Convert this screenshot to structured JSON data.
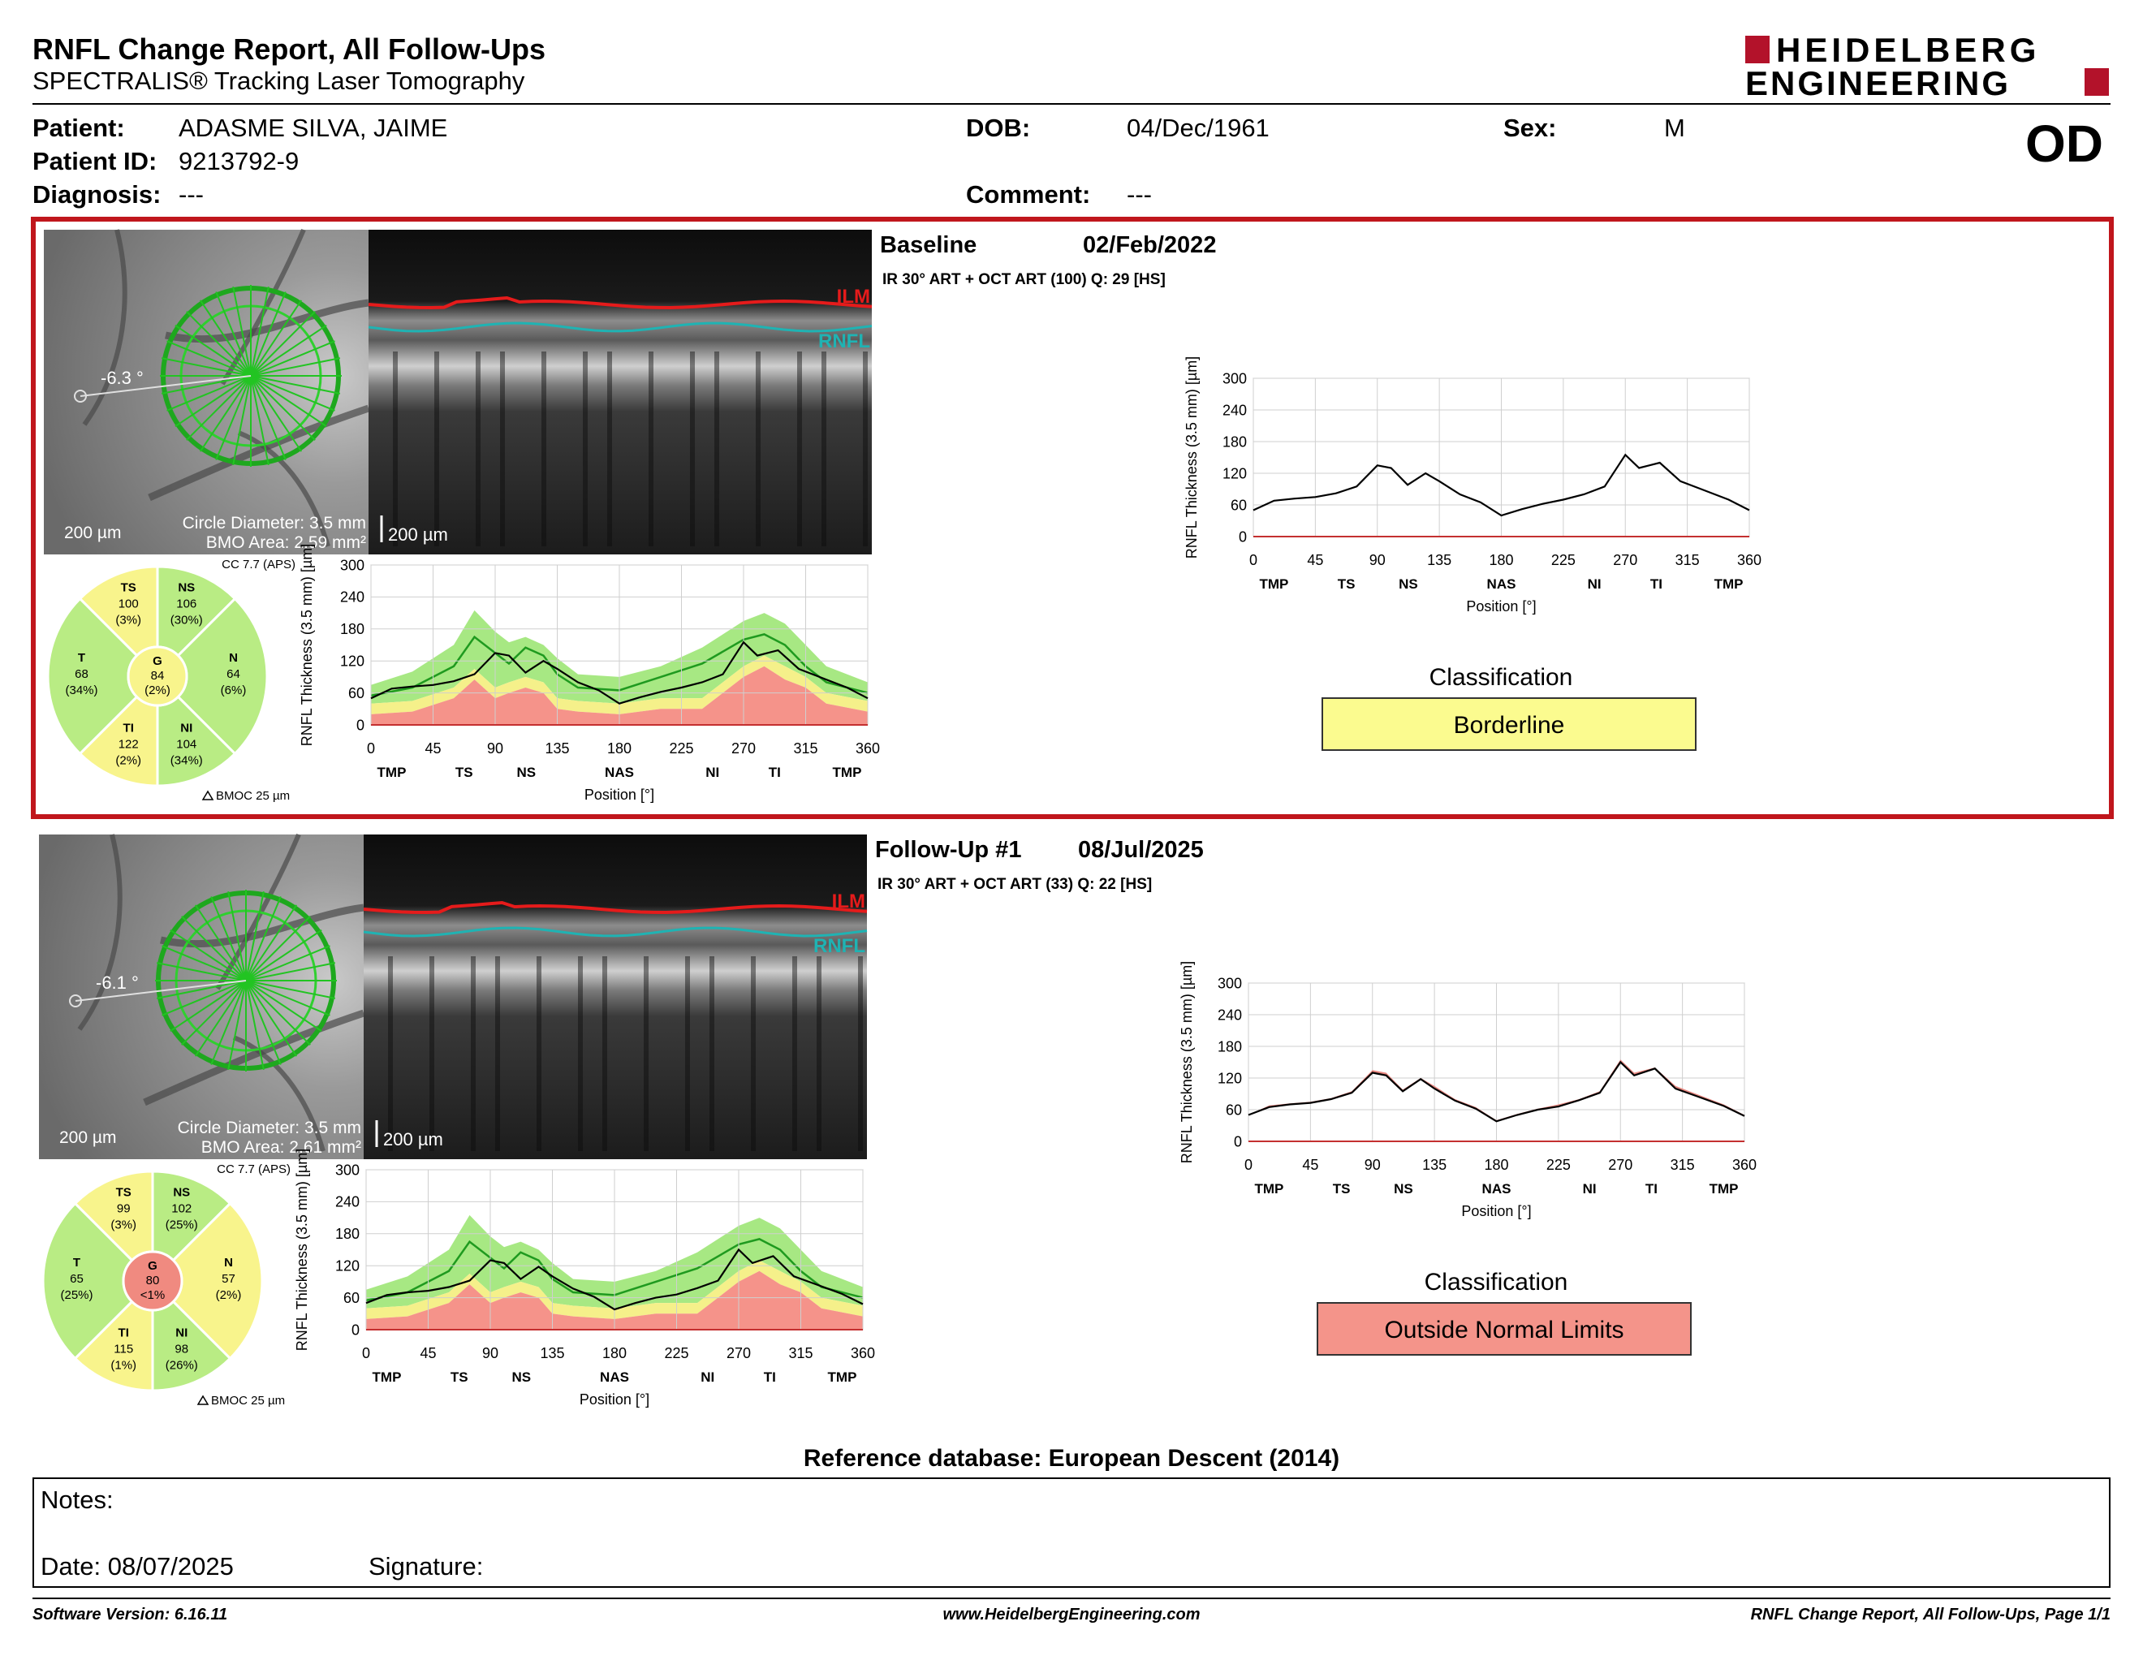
{
  "report": {
    "title": "RNFL Change Report, All Follow-Ups",
    "subtitle": "SPECTRALIS® Tracking Laser Tomography",
    "logo_line1": "HEIDELBERG",
    "logo_line2": "ENGINEERING",
    "eye": "OD"
  },
  "patient": {
    "patient_label": "Patient:",
    "patient_value": "ADASME SILVA, JAIME",
    "id_label": "Patient ID:",
    "id_value": "9213792-9",
    "diagnosis_label": "Diagnosis:",
    "diagnosis_value": "---",
    "dob_label": "DOB:",
    "dob_value": "04/Dec/1961",
    "comment_label": "Comment:",
    "comment_value": "---",
    "sex_label": "Sex:",
    "sex_value": "M"
  },
  "exams": [
    {
      "header": "Baseline",
      "date": "02/Feb/2022",
      "acq": "IR 30° ART + OCT ART (100) Q: 29 [HS]",
      "fundus": {
        "angle": "-6.3 °",
        "scale": "200 µm",
        "circle": "Circle Diameter: 3.5 mm",
        "bmo": "BMO Area: 2.59 mm²",
        "cc": "CC 7.7 (APS)",
        "bmoc": "BMOC 25 µm"
      },
      "oct": {
        "ilm": "ILM",
        "rnfl": "RNFL",
        "scale": "200 µm"
      },
      "sectors": {
        "TS": {
          "name": "TS",
          "value": "100",
          "pct": "(3%)",
          "color": "#f8f48c"
        },
        "NS": {
          "name": "NS",
          "value": "106",
          "pct": "(30%)",
          "color": "#b9ec84"
        },
        "T": {
          "name": "T",
          "value": "68",
          "pct": "(34%)",
          "color": "#b9ec84"
        },
        "G": {
          "name": "G",
          "value": "84",
          "pct": "(2%)",
          "color": "#f8f48c"
        },
        "N": {
          "name": "N",
          "value": "64",
          "pct": "(6%)",
          "color": "#b9ec84"
        },
        "TI": {
          "name": "TI",
          "value": "122",
          "pct": "(2%)",
          "color": "#f8f48c"
        },
        "NI": {
          "name": "NI",
          "value": "104",
          "pct": "(34%)",
          "color": "#b9ec84"
        }
      },
      "classification_label": "Classification",
      "classification": "Borderline",
      "classification_color": "#fbfb8f"
    },
    {
      "header": "Follow-Up #1",
      "date": "08/Jul/2025",
      "acq": "IR 30° ART + OCT ART (33) Q: 22 [HS]",
      "fundus": {
        "angle": "-6.1 °",
        "scale": "200 µm",
        "circle": "Circle Diameter: 3.5 mm",
        "bmo": "BMO Area: 2.61 mm²",
        "cc": "CC 7.7 (APS)",
        "bmoc": "BMOC 25 µm"
      },
      "oct": {
        "ilm": "ILM",
        "rnfl": "RNFL",
        "scale": "200 µm"
      },
      "sectors": {
        "TS": {
          "name": "TS",
          "value": "99",
          "pct": "(3%)",
          "color": "#f8f48c"
        },
        "NS": {
          "name": "NS",
          "value": "102",
          "pct": "(25%)",
          "color": "#b9ec84"
        },
        "T": {
          "name": "T",
          "value": "65",
          "pct": "(25%)",
          "color": "#b9ec84"
        },
        "G": {
          "name": "G",
          "value": "80",
          "pct": "<1%",
          "color": "#f08a80"
        },
        "N": {
          "name": "N",
          "value": "57",
          "pct": "(2%)",
          "color": "#f8f48c"
        },
        "TI": {
          "name": "TI",
          "value": "115",
          "pct": "(1%)",
          "color": "#f8f48c"
        },
        "NI": {
          "name": "NI",
          "value": "98",
          "pct": "(26%)",
          "color": "#b9ec84"
        }
      },
      "classification_label": "Classification",
      "classification": "Outside Normal Limits",
      "classification_color": "#f4948a"
    }
  ],
  "chart_common": {
    "ylabel": "RNFL Thickness (3.5 mm) [µm]",
    "xlabel": "Position [°]",
    "xticks": [
      "0",
      "45",
      "90",
      "135",
      "180",
      "225",
      "270",
      "315",
      "360"
    ],
    "yticks": [
      "0",
      "60",
      "120",
      "180",
      "240",
      "300"
    ],
    "sector_labels_small": [
      "TMP",
      "TS",
      "NS",
      "NAS",
      "NI",
      "TI",
      "TMP"
    ],
    "sector_labels_large": [
      "TMP",
      "TS",
      "NS",
      "NAS",
      "NI",
      "TI",
      "TMP"
    ]
  },
  "chart_data": [
    {
      "type": "line",
      "title": "",
      "xlabel": "Position [°]",
      "ylabel": "RNFL Thickness (3.5 mm) [µm]",
      "xlim": [
        0,
        360
      ],
      "ylim": [
        0,
        300
      ],
      "x": [
        0,
        15,
        30,
        45,
        60,
        75,
        90,
        100,
        112,
        125,
        135,
        150,
        165,
        180,
        195,
        210,
        225,
        240,
        255,
        270,
        280,
        295,
        310,
        325,
        345,
        360
      ],
      "series": [
        {
          "values": [
            50,
            68,
            72,
            75,
            82,
            95,
            135,
            130,
            98,
            120,
            105,
            80,
            65,
            40,
            52,
            62,
            70,
            80,
            95,
            155,
            130,
            140,
            105,
            90,
            70,
            50
          ]
        }
      ],
      "bands": {
        "x": [
          0,
          30,
          60,
          75,
          90,
          100,
          112,
          125,
          135,
          150,
          180,
          210,
          240,
          270,
          285,
          300,
          315,
          330,
          360
        ],
        "p1": [
          20,
          25,
          50,
          85,
          50,
          60,
          70,
          60,
          30,
          25,
          20,
          30,
          30,
          90,
          110,
          85,
          70,
          40,
          25
        ],
        "p5": [
          40,
          45,
          70,
          105,
          70,
          80,
          90,
          80,
          50,
          45,
          40,
          50,
          50,
          110,
          130,
          110,
          90,
          60,
          45
        ],
        "mean": [
          55,
          70,
          110,
          165,
          135,
          115,
          145,
          130,
          95,
          70,
          65,
          90,
          115,
          160,
          170,
          150,
          110,
          80,
          60
        ],
        "p95": [
          75,
          100,
          150,
          215,
          175,
          155,
          165,
          150,
          125,
          95,
          90,
          110,
          145,
          195,
          210,
          190,
          150,
          110,
          80
        ]
      }
    },
    {
      "type": "line",
      "title": "",
      "xlabel": "Position [°]",
      "ylabel": "RNFL Thickness (3.5 mm) [µm]",
      "xlim": [
        0,
        360
      ],
      "ylim": [
        0,
        300
      ],
      "x": [
        0,
        15,
        30,
        45,
        60,
        75,
        90,
        100,
        112,
        125,
        135,
        150,
        165,
        180,
        195,
        210,
        225,
        240,
        255,
        270,
        280,
        295,
        310,
        325,
        345,
        360
      ],
      "series": [
        {
          "values": [
            50,
            65,
            70,
            73,
            80,
            92,
            130,
            125,
            95,
            118,
            100,
            77,
            62,
            38,
            50,
            60,
            66,
            78,
            92,
            150,
            125,
            138,
            100,
            86,
            67,
            48
          ]
        }
      ],
      "bands": {
        "x": [
          0,
          30,
          60,
          75,
          90,
          100,
          112,
          125,
          135,
          150,
          180,
          210,
          240,
          270,
          285,
          300,
          315,
          330,
          360
        ],
        "p1": [
          20,
          25,
          50,
          85,
          50,
          60,
          70,
          60,
          30,
          25,
          20,
          30,
          30,
          90,
          110,
          85,
          70,
          40,
          25
        ],
        "p5": [
          40,
          45,
          70,
          105,
          70,
          80,
          90,
          80,
          50,
          45,
          40,
          50,
          50,
          110,
          130,
          110,
          90,
          60,
          45
        ],
        "mean": [
          55,
          70,
          110,
          165,
          135,
          115,
          145,
          130,
          95,
          70,
          65,
          90,
          115,
          160,
          170,
          150,
          110,
          80,
          60
        ],
        "p95": [
          75,
          100,
          150,
          215,
          175,
          155,
          165,
          150,
          125,
          95,
          90,
          110,
          145,
          195,
          210,
          190,
          150,
          110,
          80
        ]
      }
    }
  ],
  "reference": "Reference database: European Descent (2014)",
  "notes": {
    "notes_label": "Notes:",
    "date_label": "Date: 08/07/2025",
    "signature_label": "Signature:"
  },
  "footer": {
    "left": "Software Version: 6.16.11",
    "center": "www.HeidelbergEngineering.com",
    "right": "RNFL Change Report, All Follow-Ups, Page 1/1"
  }
}
